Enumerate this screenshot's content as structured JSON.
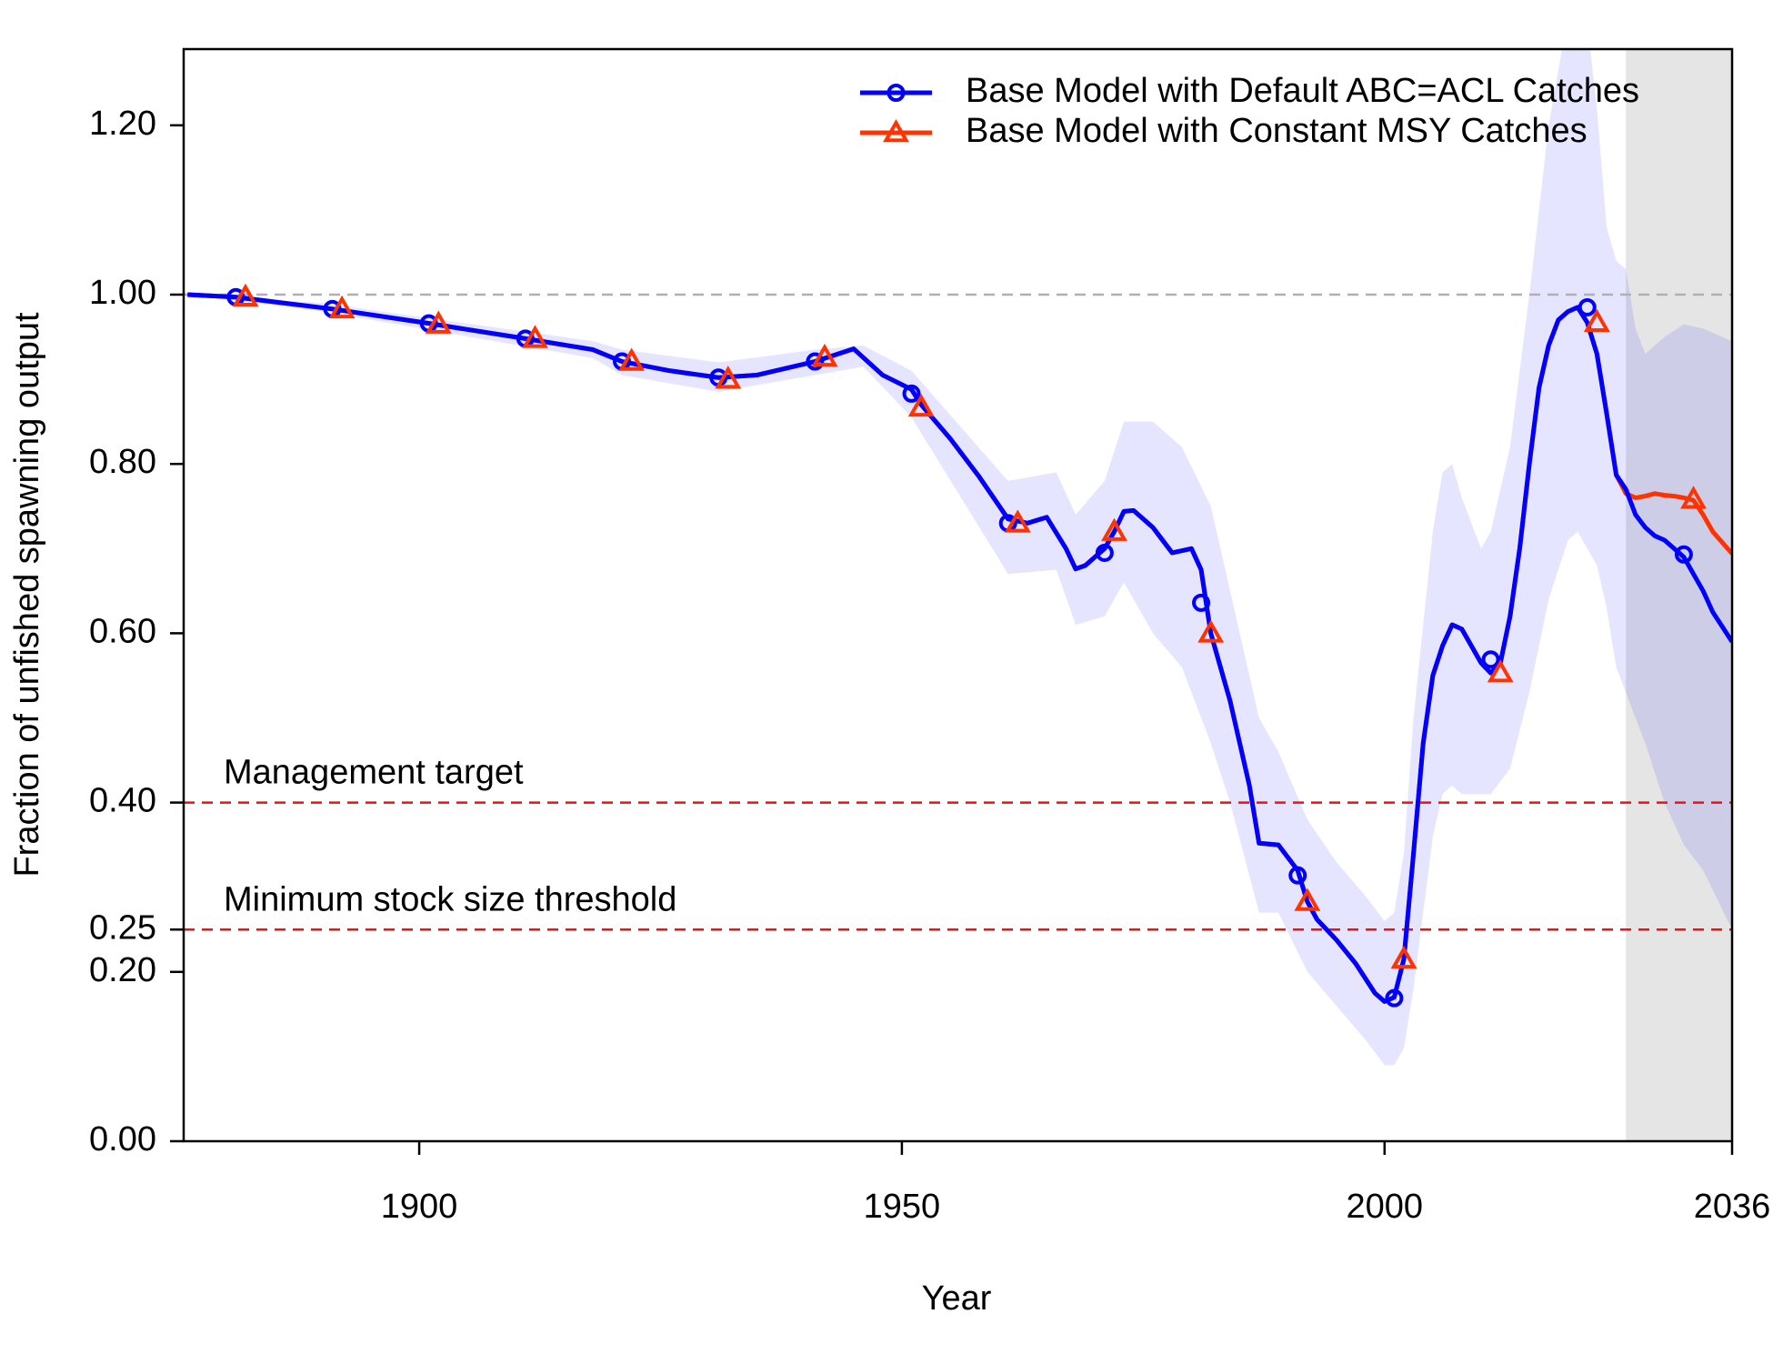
{
  "chart_data": {
    "type": "line",
    "xlabel": "Year",
    "ylabel": "Fraction of unfished spawning output",
    "xlim": [
      1875.6,
      2036
    ],
    "xticks": [
      1900,
      1950,
      2000,
      2036
    ],
    "ylim": [
      0,
      1.29
    ],
    "yticks": [
      {
        "value": 0,
        "label": "0.00"
      },
      {
        "value": 0.2,
        "label": "0.20"
      },
      {
        "value": 0.25,
        "label": "0.25"
      },
      {
        "value": 0.4,
        "label": "0.40"
      },
      {
        "value": 0.6,
        "label": "0.60"
      },
      {
        "value": 0.8,
        "label": "0.80"
      },
      {
        "value": 1,
        "label": "1.00"
      },
      {
        "value": 1.2,
        "label": "1.20"
      }
    ],
    "legend": "topright",
    "forecast_start": 2025,
    "forecast_color": "#e5e5e5",
    "hlines": [
      {
        "value": 1,
        "color": "#b0b0b0"
      },
      {
        "value": 0.4,
        "color": "#ee1111",
        "label": "Management target"
      },
      {
        "value": 0.25,
        "color": "#ee1111",
        "label": "Minimum stock size threshold"
      }
    ],
    "x": [
      1876,
      1881,
      1891,
      1901,
      1911,
      1918,
      1921,
      1926,
      1931,
      1935,
      1941,
      1945,
      1948,
      1951,
      1952,
      1955,
      1958,
      1961,
      1963,
      1965,
      1967,
      1968,
      1969,
      1971,
      1972,
      1973,
      1974,
      1976,
      1978,
      1980,
      1981,
      1982,
      1984,
      1986,
      1987,
      1989,
      1991,
      1992,
      1993,
      1995,
      1997,
      1999,
      2000,
      2001,
      2002,
      2003,
      2004,
      2005,
      2006,
      2007,
      2008,
      2009,
      2010,
      2011,
      2012,
      2013,
      2014,
      2015,
      2016,
      2017,
      2018,
      2019,
      2020,
      2021,
      2022,
      2023,
      2024,
      2025,
      2026,
      2027,
      2028,
      2029,
      2030,
      2031,
      2032,
      2033,
      2034,
      2036
    ],
    "series": [
      {
        "name": "Base Model with Default ABC=ACL Catches",
        "color": "#0000ff",
        "marker": "circle",
        "values": [
          1.0,
          0.997,
          0.983,
          0.966,
          0.948,
          0.935,
          0.921,
          0.91,
          0.902,
          0.905,
          0.921,
          0.936,
          0.905,
          0.888,
          0.87,
          0.83,
          0.785,
          0.735,
          0.73,
          0.737,
          0.7,
          0.676,
          0.68,
          0.7,
          0.72,
          0.744,
          0.745,
          0.725,
          0.695,
          0.7,
          0.675,
          0.6,
          0.52,
          0.42,
          0.352,
          0.35,
          0.32,
          0.283,
          0.262,
          0.238,
          0.21,
          0.175,
          0.165,
          0.17,
          0.215,
          0.34,
          0.47,
          0.55,
          0.585,
          0.61,
          0.605,
          0.585,
          0.565,
          0.553,
          0.565,
          0.62,
          0.7,
          0.8,
          0.89,
          0.94,
          0.97,
          0.98,
          0.985,
          0.967,
          0.93,
          0.86,
          0.787,
          0.77,
          0.74,
          0.725,
          0.715,
          0.71,
          0.7,
          0.69,
          0.67,
          0.65,
          0.625,
          0.59
        ],
        "markers": {
          "x": [
            1881,
            1891,
            1901,
            1911,
            1921,
            1931,
            1941,
            1951,
            1961,
            1971,
            1981,
            1991,
            2001,
            2011,
            2021,
            2031
          ],
          "values": [
            0.997,
            0.983,
            0.966,
            0.948,
            0.921,
            0.902,
            0.921,
            0.883,
            0.73,
            0.695,
            0.636,
            0.314,
            0.169,
            0.569,
            0.985,
            0.693
          ]
        }
      },
      {
        "name": "Base Model with Constant MSY Catches",
        "color": "#ff3300",
        "marker": "triangle",
        "values": [
          1.0,
          0.997,
          0.983,
          0.966,
          0.948,
          0.935,
          0.921,
          0.91,
          0.902,
          0.905,
          0.921,
          0.936,
          0.905,
          0.888,
          0.87,
          0.83,
          0.785,
          0.735,
          0.73,
          0.737,
          0.7,
          0.676,
          0.68,
          0.7,
          0.72,
          0.744,
          0.745,
          0.725,
          0.695,
          0.7,
          0.675,
          0.6,
          0.52,
          0.42,
          0.352,
          0.35,
          0.32,
          0.283,
          0.262,
          0.238,
          0.21,
          0.175,
          0.165,
          0.17,
          0.215,
          0.34,
          0.47,
          0.55,
          0.585,
          0.61,
          0.605,
          0.585,
          0.565,
          0.553,
          0.565,
          0.62,
          0.7,
          0.8,
          0.89,
          0.94,
          0.97,
          0.98,
          0.985,
          0.967,
          0.93,
          0.86,
          0.787,
          0.765,
          0.76,
          0.762,
          0.765,
          0.763,
          0.762,
          0.76,
          0.757,
          0.74,
          0.72,
          0.694
        ],
        "markers": {
          "x": [
            1882,
            1892,
            1902,
            1912,
            1922,
            1932,
            1942,
            1952,
            1962,
            1972,
            1982,
            1992,
            2002,
            2012,
            2022,
            2032
          ],
          "values": [
            0.997,
            0.983,
            0.965,
            0.948,
            0.921,
            0.9,
            0.926,
            0.867,
            0.73,
            0.72,
            0.6,
            0.283,
            0.215,
            0.553,
            0.967,
            0.758
          ]
        }
      }
    ],
    "band": {
      "color": "#0000ff",
      "x": [
        1876,
        1890,
        1918,
        1921,
        1931,
        1941,
        1946,
        1951,
        1961,
        1966,
        1968,
        1971,
        1973,
        1976,
        1979,
        1982,
        1984,
        1987,
        1989,
        1992,
        1995,
        1998,
        2000,
        2001,
        2002,
        2003,
        2005,
        2006,
        2007,
        2008,
        2010,
        2011,
        2013,
        2015,
        2017,
        2019,
        2020,
        2021,
        2022,
        2023,
        2024,
        2025,
        2026,
        2027,
        2029,
        2031,
        2033,
        2036
      ],
      "upper": [
        1.0,
        0.99,
        0.945,
        0.935,
        0.92,
        0.935,
        0.94,
        0.91,
        0.78,
        0.79,
        0.74,
        0.78,
        0.85,
        0.85,
        0.82,
        0.75,
        0.65,
        0.5,
        0.46,
        0.38,
        0.33,
        0.29,
        0.26,
        0.27,
        0.34,
        0.5,
        0.72,
        0.79,
        0.8,
        0.76,
        0.7,
        0.72,
        0.82,
        1.0,
        1.2,
        1.33,
        1.35,
        1.32,
        1.22,
        1.08,
        1.04,
        1.03,
        0.96,
        0.93,
        0.95,
        0.965,
        0.96,
        0.945
      ],
      "lower": [
        1.0,
        0.98,
        0.925,
        0.905,
        0.885,
        0.905,
        0.915,
        0.855,
        0.67,
        0.675,
        0.61,
        0.62,
        0.66,
        0.6,
        0.56,
        0.47,
        0.4,
        0.27,
        0.27,
        0.2,
        0.16,
        0.12,
        0.09,
        0.09,
        0.11,
        0.18,
        0.36,
        0.41,
        0.42,
        0.41,
        0.41,
        0.41,
        0.44,
        0.53,
        0.64,
        0.71,
        0.72,
        0.7,
        0.68,
        0.63,
        0.56,
        0.53,
        0.5,
        0.47,
        0.4,
        0.35,
        0.32,
        0.25
      ]
    }
  }
}
